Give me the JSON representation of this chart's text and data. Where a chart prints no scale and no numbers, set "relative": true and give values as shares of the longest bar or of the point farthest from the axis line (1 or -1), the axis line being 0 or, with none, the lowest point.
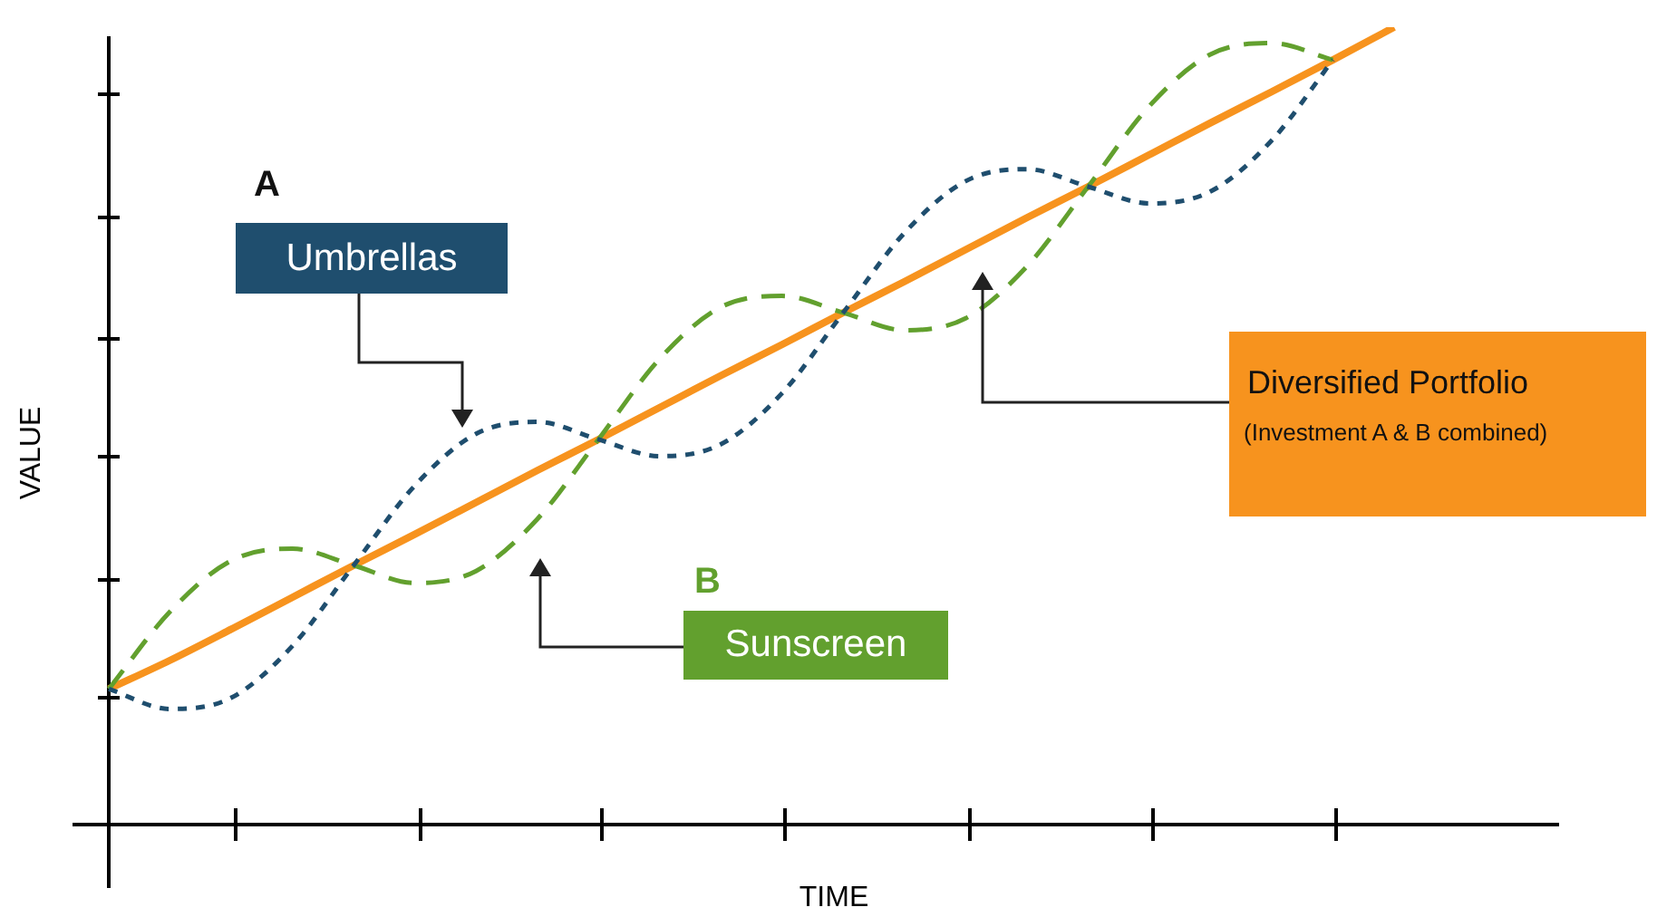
{
  "chart_data": {
    "type": "line",
    "xlabel": "TIME",
    "ylabel": "VALUE",
    "relative": true,
    "legend": false,
    "marker": "none",
    "categories": [
      null,
      null,
      null,
      null,
      null,
      null,
      null,
      null,
      null,
      null,
      null,
      null,
      null,
      null,
      null,
      null,
      null,
      null,
      null,
      null,
      null,
      null
    ],
    "series": [
      {
        "name": "Umbrellas",
        "color": "#1f4e6e",
        "line_style": "dotted",
        "values": [
          0.17,
          0.145,
          0.159,
          0.224,
          0.325,
          0.425,
          0.49,
          0.505,
          0.483,
          0.462,
          0.477,
          0.541,
          0.642,
          0.742,
          0.807,
          0.822,
          0.8,
          0.779,
          0.794,
          0.858,
          0.959,
          null
        ]
      },
      {
        "name": "Sunscreen",
        "color": "#62a02e",
        "line_style": "dashed",
        "values": [
          0.17,
          0.267,
          0.331,
          0.346,
          0.325,
          0.303,
          0.318,
          0.383,
          0.483,
          0.584,
          0.649,
          0.663,
          0.642,
          0.62,
          0.635,
          0.7,
          0.8,
          0.901,
          0.966,
          0.98,
          0.959,
          null
        ]
      },
      {
        "name": "Diversified Portfolio",
        "color": "#f7931e",
        "line_style": "solid",
        "values": [
          0.17,
          0.206,
          0.245,
          0.285,
          0.325,
          0.364,
          0.404,
          0.444,
          0.483,
          0.523,
          0.563,
          0.602,
          0.642,
          0.681,
          0.721,
          0.761,
          0.8,
          0.84,
          0.88,
          0.919,
          0.959,
          1
        ]
      }
    ],
    "annotations": [
      "A",
      "B",
      "(Investment A & B combined)"
    ]
  }
}
